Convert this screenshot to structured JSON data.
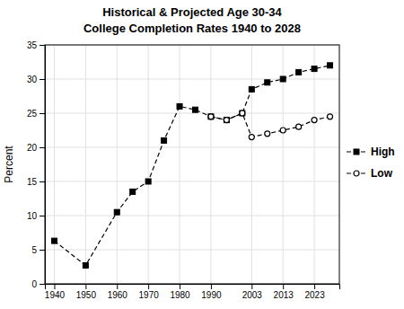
{
  "chart_data": {
    "type": "line",
    "title": "Historical & Projected Age 30-34",
    "subtitle": "College Completion Rates 1940 to 2028",
    "y_label": "Percent",
    "xlim": [
      1937,
      2031
    ],
    "xticks": [
      1940,
      1950,
      1960,
      1970,
      1980,
      1990,
      2003,
      2013,
      2023
    ],
    "ylim": [
      0,
      35
    ],
    "yticks": [
      0,
      5,
      10,
      15,
      20,
      25,
      30,
      35
    ],
    "grid": true,
    "series": [
      {
        "name": "High",
        "color": "#000000",
        "marker": "square",
        "line_style": "dashed",
        "x": [
          1940,
          1950,
          1960,
          1965,
          1970,
          1975,
          1980,
          1985,
          1990,
          1995,
          2000,
          2003,
          2008,
          2013,
          2018,
          2023,
          2028
        ],
        "values": [
          6.3,
          2.7,
          10.5,
          13.5,
          15.0,
          21.0,
          26.0,
          25.5,
          24.5,
          24.0,
          25.0,
          28.5,
          29.5,
          30.0,
          31.0,
          31.5,
          32.0
        ]
      },
      {
        "name": "Low",
        "color": "#000000",
        "marker": "circle",
        "line_style": "dashed",
        "x": [
          1990,
          1995,
          2000,
          2003,
          2008,
          2013,
          2018,
          2023,
          2028
        ],
        "values": [
          24.5,
          24.0,
          25.0,
          21.5,
          22.0,
          22.5,
          23.0,
          24.0,
          24.5
        ]
      }
    ]
  }
}
